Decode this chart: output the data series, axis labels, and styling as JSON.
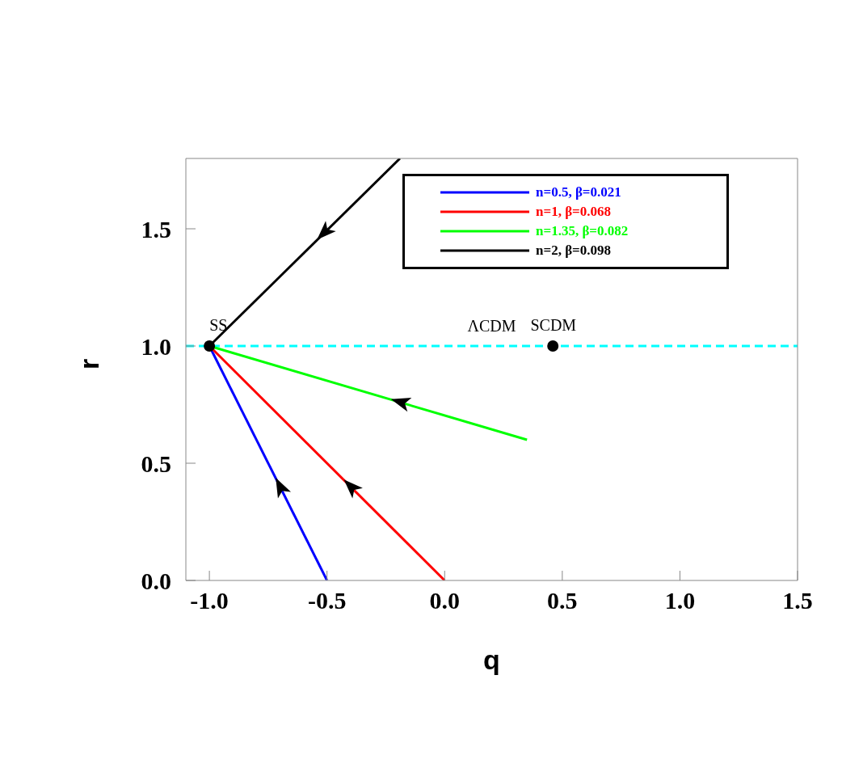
{
  "chart_data": {
    "type": "line",
    "xlabel": "q",
    "ylabel": "r",
    "xlim": [
      -1.1,
      1.5
    ],
    "ylim": [
      0,
      1.8
    ],
    "xticks": [
      {
        "value": -1,
        "label": "-1.0"
      },
      {
        "value": -0.5,
        "label": "-0.5"
      },
      {
        "value": 0,
        "label": "0.0"
      },
      {
        "value": 0.5,
        "label": "0.5"
      },
      {
        "value": 1,
        "label": "1.0"
      },
      {
        "value": 1.5,
        "label": "1.5"
      }
    ],
    "yticks": [
      {
        "value": 0,
        "label": "0.0"
      },
      {
        "value": 0.5,
        "label": "0.5"
      },
      {
        "value": 1,
        "label": "1.0"
      },
      {
        "value": 1.5,
        "label": "1.5"
      }
    ],
    "series": [
      {
        "name": "n=0.5, β=0.021",
        "color": "#0000ff",
        "x": [
          -1,
          -0.5
        ],
        "values": [
          1,
          0
        ]
      },
      {
        "name": "n=1, β=0.068",
        "color": "#ff0000",
        "x": [
          -1,
          0
        ],
        "values": [
          1,
          0
        ]
      },
      {
        "name": "n=1.35, β=0.082",
        "color": "#00ff00",
        "x": [
          -1,
          0.35
        ],
        "values": [
          1,
          0.6
        ]
      },
      {
        "name": "n=2, β=0.098",
        "color": "#000000",
        "x": [
          -1,
          -0.19
        ],
        "values": [
          1,
          1.8
        ]
      },
      {
        "type": "scatter",
        "color": "#000000",
        "x": [
          -1,
          0.46
        ],
        "values": [
          1,
          1
        ],
        "marker": "circle"
      }
    ],
    "ref_lines": [
      {
        "axis": "y",
        "value": 1,
        "color": "#00ffff",
        "line_style": "dashed",
        "label": "ΛCDM"
      }
    ],
    "annotations": [
      {
        "text": "SS",
        "x": -1,
        "y": 1
      },
      {
        "text": "SCDM",
        "x": 0.46,
        "y": 1
      }
    ],
    "legend": "top right",
    "grid": false,
    "marker": "none",
    "line_style": "solid"
  }
}
